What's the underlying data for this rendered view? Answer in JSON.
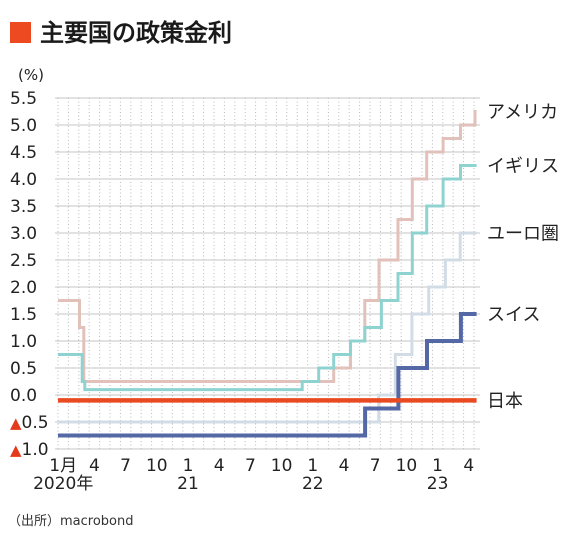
{
  "source_note": "（出所）macrobond",
  "accent_color": "#EE4A22",
  "chart_data": {
    "type": "line",
    "step": true,
    "title": "主要国の政策金利",
    "ylabel": "(%)",
    "ylim": [
      -1.0,
      5.5
    ],
    "x_range": [
      "2020-01-01",
      "2023-05-19"
    ],
    "grid": {
      "horizontal": true,
      "vertical": true
    },
    "legend": "right",
    "y_ticks": [
      5.5,
      5.0,
      4.5,
      4.0,
      3.5,
      3.0,
      2.5,
      2.0,
      1.5,
      1.0,
      0.5,
      0.0,
      -0.5,
      -1.0
    ],
    "y_tick_labels": [
      "5.5",
      "5.0",
      "4.5",
      "4.0",
      "3.5",
      "3.0",
      "2.5",
      "2.0",
      "1.5",
      "1.0",
      "0.5",
      "0.0",
      "▲0.5",
      "▲1.0"
    ],
    "negative_marker_color": "#E5391B",
    "x_ticks": [
      {
        "month": "2020-01",
        "label": "1月"
      },
      {
        "month": "2020-04",
        "label": "4"
      },
      {
        "month": "2020-07",
        "label": "7"
      },
      {
        "month": "2020-10",
        "label": "10"
      },
      {
        "month": "2021-01",
        "label": "1"
      },
      {
        "month": "2021-04",
        "label": "4"
      },
      {
        "month": "2021-07",
        "label": "7"
      },
      {
        "month": "2021-10",
        "label": "10"
      },
      {
        "month": "2022-01",
        "label": "1"
      },
      {
        "month": "2022-04",
        "label": "4"
      },
      {
        "month": "2022-07",
        "label": "7"
      },
      {
        "month": "2022-10",
        "label": "10"
      },
      {
        "month": "2023-01",
        "label": "1"
      },
      {
        "month": "2023-04",
        "label": "4"
      }
    ],
    "year_labels": [
      {
        "month": "2020-01",
        "label": "2020年"
      },
      {
        "month": "2021-01",
        "label": "21"
      },
      {
        "month": "2022-01",
        "label": "22"
      },
      {
        "month": "2023-01",
        "label": "23"
      }
    ],
    "series": [
      {
        "name": "アメリカ",
        "color": "#E2C1BB",
        "points": [
          [
            "2020-01-01",
            1.75
          ],
          [
            "2020-03-03",
            1.25
          ],
          [
            "2020-03-16",
            0.25
          ],
          [
            "2022-03-17",
            0.5
          ],
          [
            "2022-05-05",
            1.0
          ],
          [
            "2022-06-16",
            1.75
          ],
          [
            "2022-07-28",
            2.5
          ],
          [
            "2022-09-22",
            3.25
          ],
          [
            "2022-11-03",
            4.0
          ],
          [
            "2022-12-15",
            4.5
          ],
          [
            "2023-02-02",
            4.75
          ],
          [
            "2023-03-23",
            5.0
          ],
          [
            "2023-05-04",
            5.25
          ],
          [
            "2023-05-09",
            5.25
          ]
        ]
      },
      {
        "name": "イギリス",
        "color": "#8FD3D1",
        "points": [
          [
            "2020-01-01",
            0.75
          ],
          [
            "2020-03-11",
            0.25
          ],
          [
            "2020-03-19",
            0.1
          ],
          [
            "2021-12-16",
            0.25
          ],
          [
            "2022-02-03",
            0.5
          ],
          [
            "2022-03-17",
            0.75
          ],
          [
            "2022-05-05",
            1.0
          ],
          [
            "2022-06-16",
            1.25
          ],
          [
            "2022-08-04",
            1.75
          ],
          [
            "2022-09-22",
            2.25
          ],
          [
            "2022-11-03",
            3.0
          ],
          [
            "2022-12-15",
            3.5
          ],
          [
            "2023-02-02",
            4.0
          ],
          [
            "2023-03-23",
            4.25
          ],
          [
            "2023-05-09",
            4.25
          ]
        ]
      },
      {
        "name": "ユーロ圏",
        "color": "#D2DCE6",
        "points": [
          [
            "2020-01-01",
            -0.5
          ],
          [
            "2022-07-27",
            0.0
          ],
          [
            "2022-09-14",
            0.75
          ],
          [
            "2022-11-02",
            1.5
          ],
          [
            "2022-12-21",
            2.0
          ],
          [
            "2023-02-08",
            2.5
          ],
          [
            "2023-03-22",
            3.0
          ],
          [
            "2023-05-09",
            3.0
          ]
        ]
      },
      {
        "name": "スイス",
        "color": "#5468A6",
        "points": [
          [
            "2020-01-01",
            -0.75
          ],
          [
            "2022-06-17",
            -0.25
          ],
          [
            "2022-09-23",
            0.5
          ],
          [
            "2022-12-16",
            1.0
          ],
          [
            "2023-03-24",
            1.5
          ],
          [
            "2023-05-09",
            1.5
          ]
        ]
      },
      {
        "name": "日本",
        "color": "#EA4A21",
        "points": [
          [
            "2020-01-01",
            -0.1
          ],
          [
            "2023-05-09",
            -0.1
          ]
        ]
      }
    ]
  }
}
